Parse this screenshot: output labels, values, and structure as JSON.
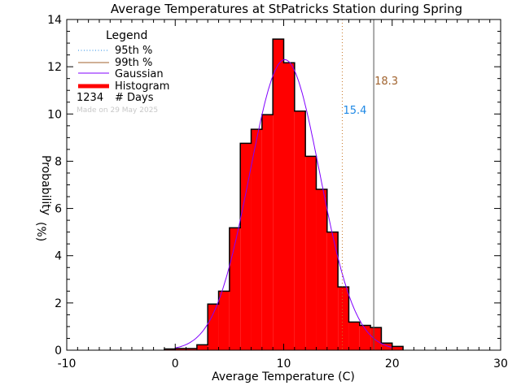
{
  "chart_data": {
    "type": "bar",
    "title": "Average Temperatures at StPatricks Station during Spring",
    "xlabel": "Average Temperature (C)",
    "ylabel": "Probability",
    "ylabel_unit": "(%)",
    "xlim": [
      -10,
      30
    ],
    "ylim": [
      0,
      14
    ],
    "xticks": [
      "-10",
      "0",
      "10",
      "20",
      "30"
    ],
    "yticks": [
      "0",
      "2",
      "4",
      "6",
      "8",
      "10",
      "12",
      "14"
    ],
    "grid": false,
    "bin_edges": [
      -1,
      0,
      1,
      2,
      3,
      4,
      5,
      6,
      7,
      8,
      9,
      10,
      11,
      12,
      13,
      14,
      15,
      16,
      17,
      18,
      19,
      20,
      21
    ],
    "values": [
      0.05,
      0.07,
      0.07,
      0.23,
      1.95,
      2.5,
      5.18,
      8.76,
      9.35,
      9.97,
      13.17,
      12.17,
      10.12,
      8.21,
      6.81,
      5.0,
      2.68,
      1.19,
      1.05,
      0.96,
      0.3,
      0.16
    ],
    "gaussian": {
      "mean": 10.1,
      "sigma": 3.24,
      "peak": 12.3,
      "range": [
        0,
        20
      ]
    },
    "percentiles": [
      {
        "name": "95th %",
        "value": 15.4,
        "label": "15.4",
        "line_color": "#c87828",
        "label_color": "#1e88e5",
        "style": "dotted"
      },
      {
        "name": "99th %",
        "value": 18.3,
        "label": "18.3",
        "line_color": "#555555",
        "label_color": "#a0622d",
        "style": "solid"
      }
    ],
    "legend": {
      "title": "Legend",
      "position": "top-left",
      "entries": [
        {
          "label": "95th %",
          "color": "#1e88e5",
          "style": "dotted"
        },
        {
          "label": "99th %",
          "color": "#a0622d",
          "style": "solid"
        },
        {
          "label": "Gaussian",
          "color": "#8000ff",
          "style": "solid"
        },
        {
          "label": "Histogram",
          "color": "#ff0000",
          "style": "thick"
        }
      ],
      "days_sample": "1234",
      "days_label": "# Days"
    },
    "footnote": "Made on 29 May 2025",
    "colors": {
      "bar": "#ff0000",
      "gaussian": "#8000ff"
    }
  }
}
